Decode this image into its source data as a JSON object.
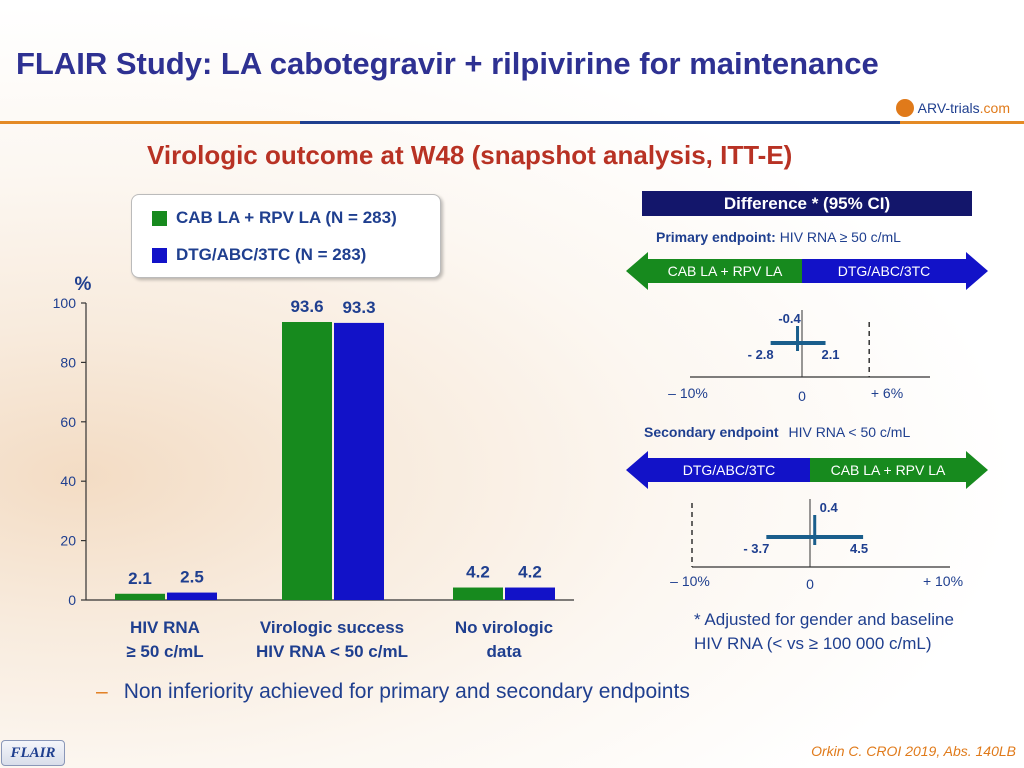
{
  "title": "FLAIR Study: LA cabotegravir + rilpivirine for maintenance",
  "logo": {
    "text": "ARV-trials",
    "suffix": ".com"
  },
  "subtitle": "Virologic outcome at W48 (snapshot analysis, ITT-E)",
  "colors": {
    "cab_rpv": "#178a1e",
    "dtg": "#1212c8",
    "title": "#2e3192",
    "subtitle": "#b83224",
    "accent": "#e07a1a"
  },
  "chart_data": [
    {
      "type": "bar",
      "ylabel": "%",
      "ylim": [
        0,
        100
      ],
      "yticks": [
        "0",
        "20",
        "40",
        "60",
        "80",
        "100"
      ],
      "categories": [
        [
          "HIV RNA",
          "≥ 50 c/mL"
        ],
        [
          "Virologic success",
          "HIV RNA < 50 c/mL"
        ],
        [
          "No virologic",
          "data"
        ]
      ],
      "series": [
        {
          "name": "CAB LA + RPV LA (N = 283)",
          "values": [
            2.1,
            93.6,
            4.2
          ],
          "labels": [
            "2.1",
            "93.6",
            "4.2"
          ]
        },
        {
          "name": "DTG/ABC/3TC (N = 283)",
          "values": [
            2.5,
            93.3,
            4.2
          ],
          "labels": [
            "2.5",
            "93.3",
            "4.2"
          ]
        }
      ]
    },
    {
      "type": "forest",
      "header": "Difference * (95% CI)",
      "panels": [
        {
          "endpoint_label": "Primary endpoint:",
          "endpoint_desc": "HIV RNA ≥ 50 c/mL",
          "arrow_left": "CAB LA + RPV LA",
          "arrow_right": "DTG/ABC/3TC",
          "point": -0.4,
          "lower": -2.8,
          "upper": 2.1,
          "margin": 6,
          "point_label": "-0.4",
          "lower_label": "- 2.8",
          "upper_label": "2.1",
          "axis_labels": [
            "– 10%",
            "0",
            "+ 6%"
          ]
        },
        {
          "endpoint_label": "Secondary endpoint",
          "endpoint_desc": "HIV RNA < 50 c/mL",
          "arrow_left": "DTG/ABC/3TC",
          "arrow_right": "CAB LA + RPV LA",
          "point": 0.4,
          "lower": -3.7,
          "upper": 4.5,
          "margin": -10,
          "point_label": "0.4",
          "lower_label": "- 3.7",
          "upper_label": "4.5",
          "axis_labels": [
            "– 10%",
            "0",
            "+ 10%"
          ]
        }
      ]
    }
  ],
  "footnote": [
    "* Adjusted for gender and baseline",
    "HIV RNA (< vs ≥ 100 000 c/mL)"
  ],
  "bullet": "Non inferiority achieved for primary and secondary endpoints",
  "tag": "FLAIR",
  "citation": "Orkin C. CROI 2019, Abs. 140LB"
}
